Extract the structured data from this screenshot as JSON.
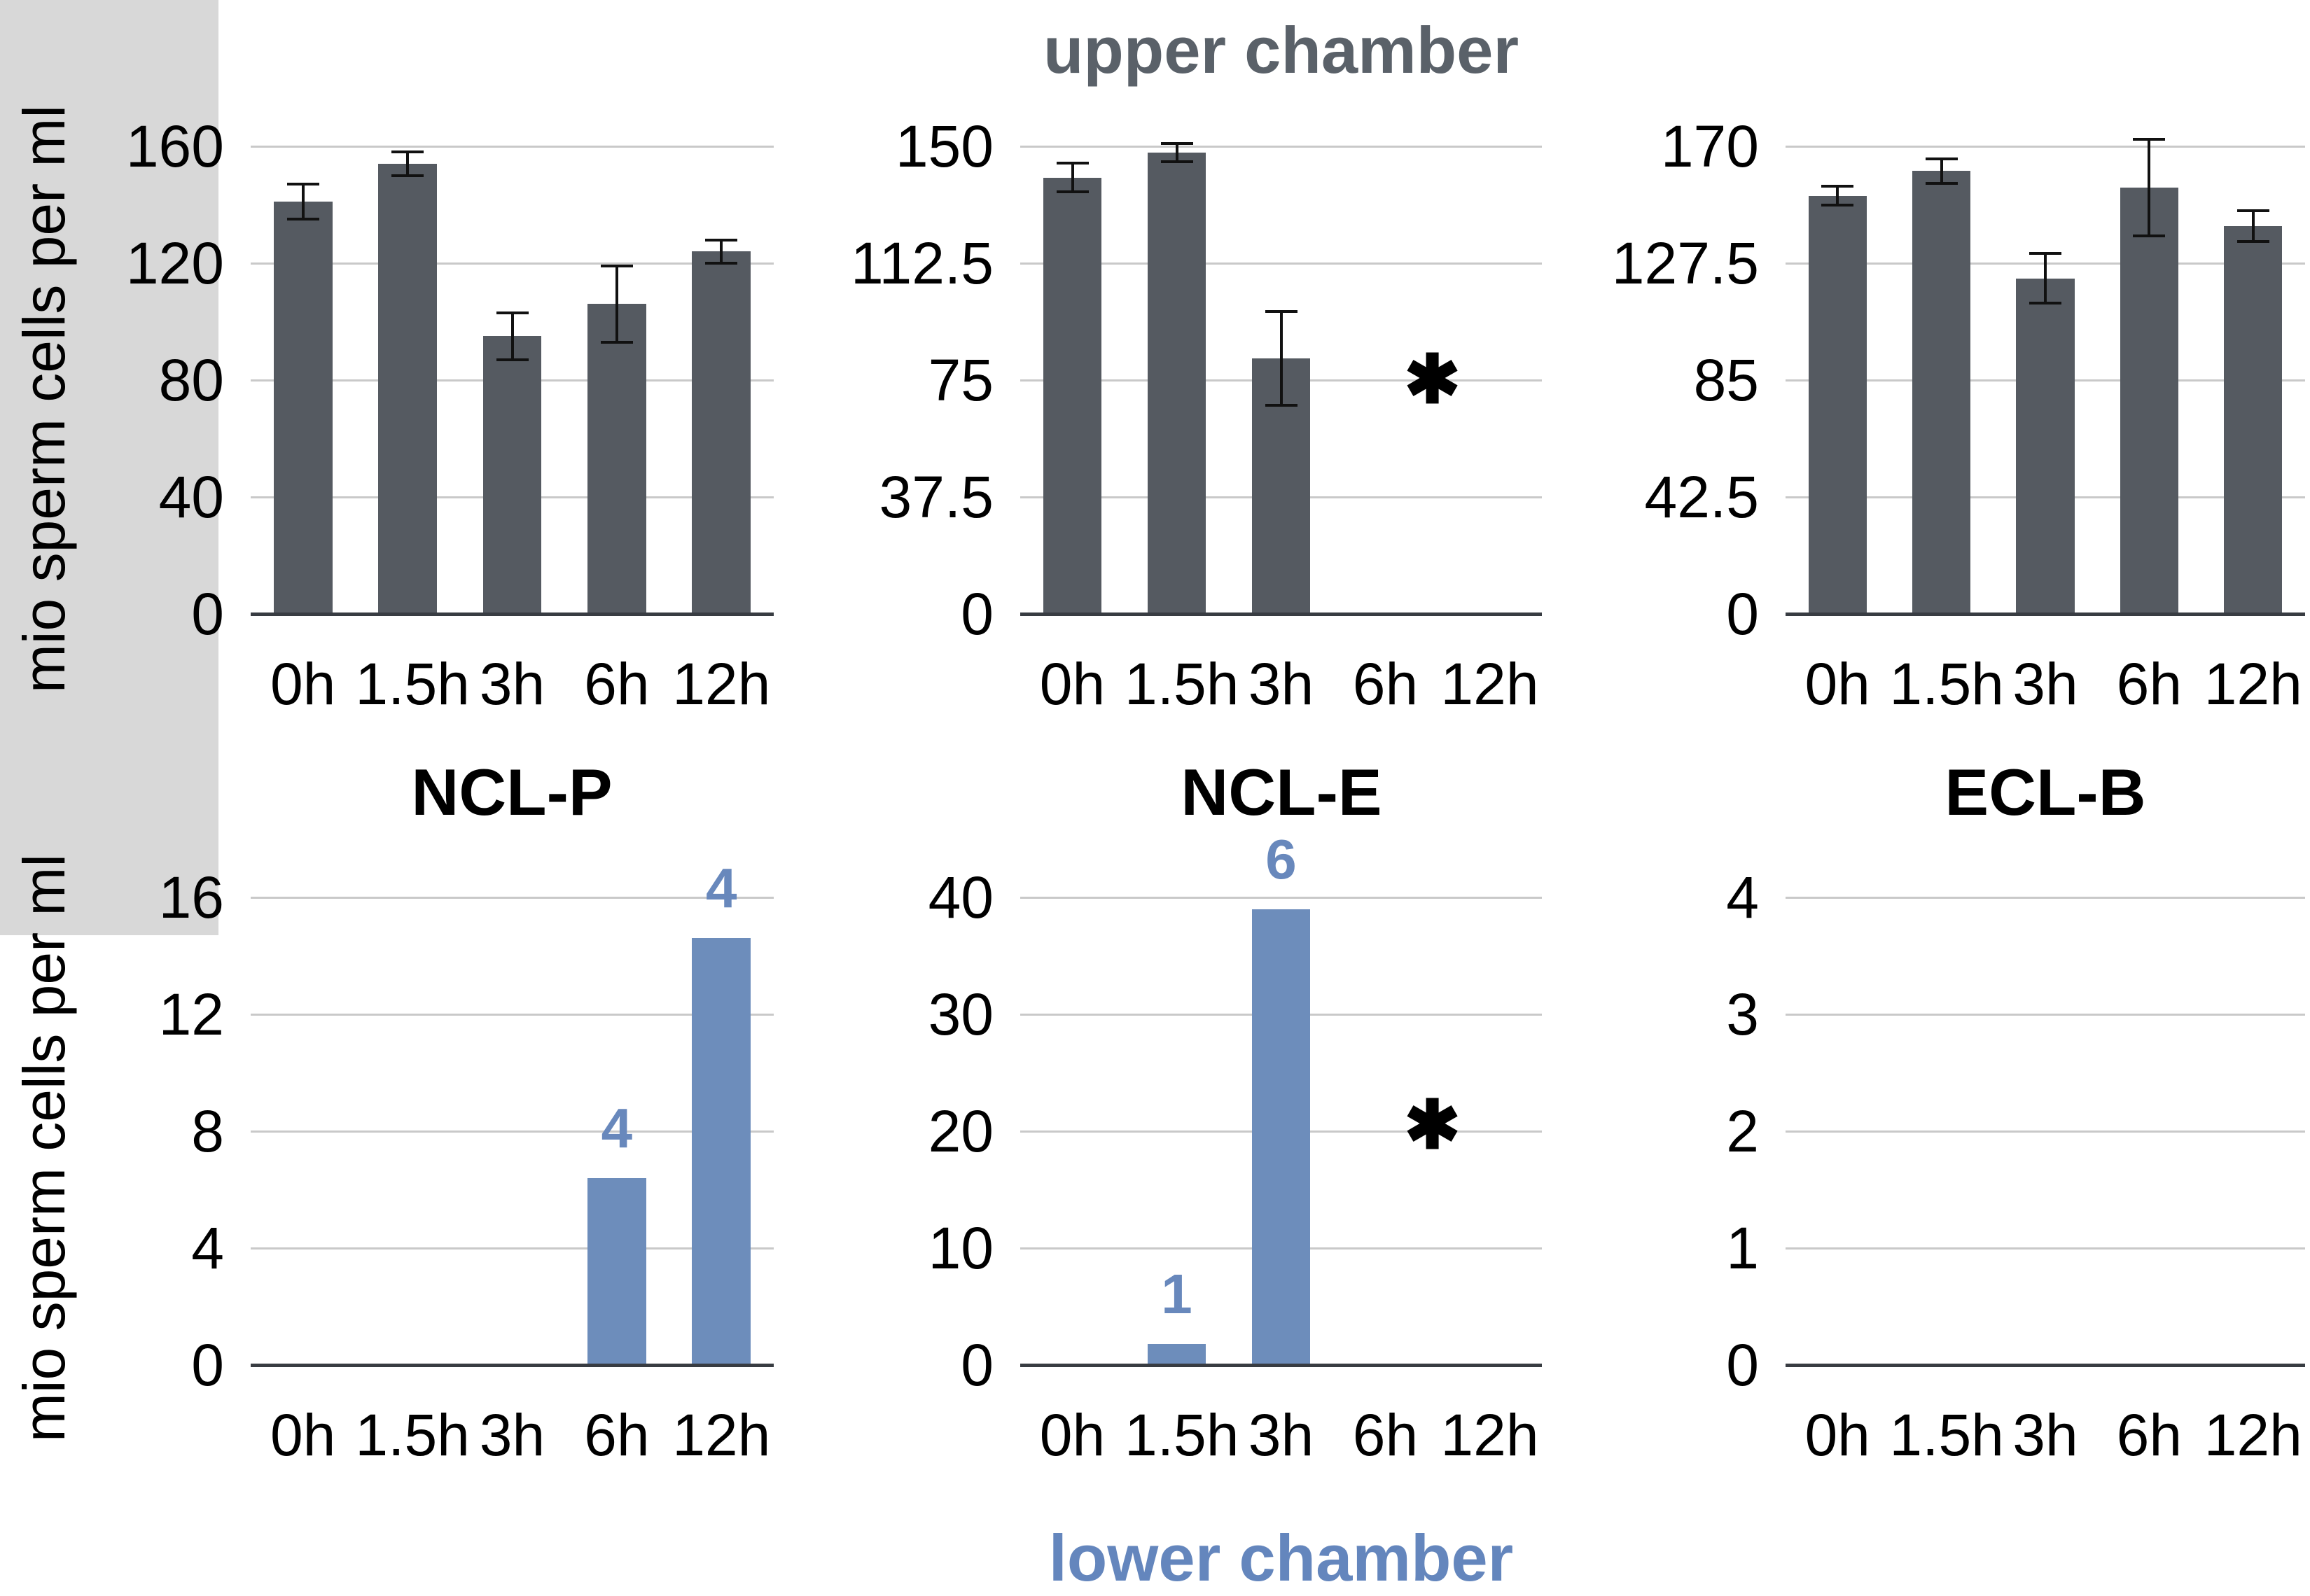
{
  "figure": {
    "top_title": "upper chamber",
    "bottom_title": "lower chamber",
    "y_axis_label": "mio sperm cells per ml",
    "group_titles": [
      "NCL-P",
      "NCL-E",
      "ECL-B"
    ],
    "significance_marker": "✱"
  },
  "colors": {
    "upper_bar": "#555a61",
    "lower_bar": "#6d8dbb",
    "lower_label_text": "#6888bc",
    "top_title_text": "#5a6169",
    "bottom_title_text": "#6486bd",
    "gridline": "#c9c9c9",
    "baseline": "#383c42",
    "error_bar": "#111111",
    "excluded_region": "#d8d8d8"
  },
  "chart_data": [
    {
      "id": "upper-left",
      "type": "bar",
      "row": "upper",
      "col": 0,
      "title": "",
      "ylabel": "mio sperm cells per ml",
      "ylim": [
        0,
        160
      ],
      "yticks": [
        "160",
        "120",
        "80",
        "40",
        "0"
      ],
      "categories": [
        "0h",
        "1.5h",
        "3h",
        "6h",
        "12h"
      ],
      "values": [
        141,
        154,
        95,
        106,
        124
      ],
      "errors": [
        6,
        4,
        8,
        13,
        4
      ],
      "bar_labels": [
        null,
        null,
        null,
        null,
        null
      ],
      "excluded_region": null
    },
    {
      "id": "upper-middle",
      "type": "bar",
      "row": "upper",
      "col": 1,
      "title": "upper chamber",
      "ylabel": "mio sperm cells per ml",
      "ylim": [
        0,
        150
      ],
      "yticks": [
        "150",
        "112.5",
        "75",
        "37.5",
        "0"
      ],
      "categories": [
        "0h",
        "1.5h",
        "3h",
        "6h",
        "12h"
      ],
      "values": [
        140,
        148,
        82,
        null,
        null
      ],
      "errors": [
        4.5,
        3,
        15,
        null,
        null
      ],
      "bar_labels": [
        null,
        null,
        null,
        null,
        null
      ],
      "excluded_region": {
        "covers": [
          "6h",
          "12h"
        ],
        "marker": "✱",
        "marker_value": 75
      }
    },
    {
      "id": "upper-right",
      "type": "bar",
      "row": "upper",
      "col": 2,
      "title": "",
      "ylabel": "mio sperm cells per ml",
      "ylim": [
        0,
        170
      ],
      "yticks": [
        "170",
        "127.5",
        "85",
        "42.5",
        "0"
      ],
      "categories": [
        "0h",
        "1.5h",
        "3h",
        "6h",
        "12h"
      ],
      "values": [
        152,
        161,
        122,
        155,
        141
      ],
      "errors": [
        3.5,
        4.5,
        9,
        17.5,
        5.5
      ],
      "bar_labels": [
        null,
        null,
        null,
        null,
        null
      ],
      "excluded_region": null
    },
    {
      "id": "lower-left",
      "type": "bar",
      "row": "lower",
      "col": 0,
      "title": "NCL-P",
      "ylabel": "mio sperm cells per ml",
      "ylim": [
        0,
        16
      ],
      "yticks": [
        "16",
        "12",
        "8",
        "4",
        "0"
      ],
      "categories": [
        "0h",
        "1.5h",
        "3h",
        "6h",
        "12h"
      ],
      "values": [
        0,
        0,
        0,
        6.4,
        14.6
      ],
      "errors": [
        null,
        null,
        null,
        null,
        null
      ],
      "bar_labels": [
        null,
        null,
        null,
        "4",
        "4"
      ],
      "excluded_region": null
    },
    {
      "id": "lower-middle",
      "type": "bar",
      "row": "lower",
      "col": 1,
      "title": "NCL-E",
      "ylabel": "mio sperm cells per ml",
      "ylim": [
        0,
        40
      ],
      "yticks": [
        "40",
        "30",
        "20",
        "10",
        "0"
      ],
      "categories": [
        "0h",
        "1.5h",
        "3h",
        "6h",
        "12h"
      ],
      "values": [
        0,
        1.8,
        39,
        null,
        null
      ],
      "errors": [
        null,
        null,
        null,
        null,
        null
      ],
      "bar_labels": [
        null,
        "1",
        "6",
        null,
        null
      ],
      "excluded_region": {
        "covers": [
          "6h",
          "12h"
        ],
        "marker": "✱",
        "marker_value": 20.5
      }
    },
    {
      "id": "lower-right",
      "type": "bar",
      "row": "lower",
      "col": 2,
      "title": "ECL-B",
      "ylabel": "mio sperm cells per ml",
      "ylim": [
        0,
        4
      ],
      "yticks": [
        "4",
        "3",
        "2",
        "1",
        "0"
      ],
      "categories": [
        "0h",
        "1.5h",
        "3h",
        "6h",
        "12h"
      ],
      "values": [
        0,
        0,
        0,
        0,
        0
      ],
      "errors": [
        null,
        null,
        null,
        null,
        null
      ],
      "bar_labels": [
        null,
        null,
        null,
        null,
        null
      ],
      "excluded_region": null
    }
  ]
}
